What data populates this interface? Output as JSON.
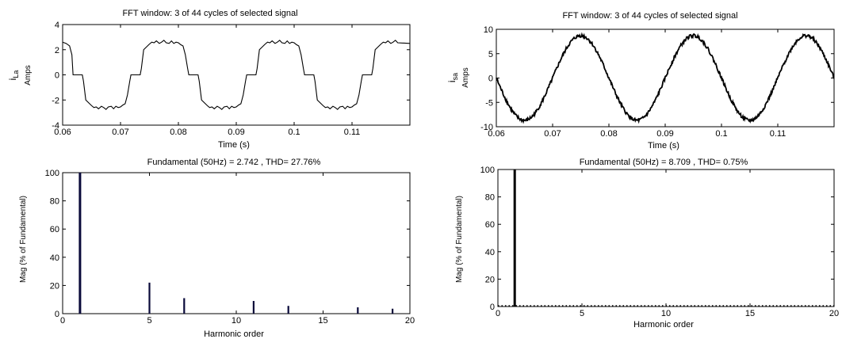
{
  "chart_data": [
    {
      "type": "line",
      "title": "FFT window: 3 of 44 cycles of selected signal",
      "xlabel": "Time (s)",
      "ylabel": "Amps",
      "ylabel_symbol": "i",
      "ylabel_subscript": "La",
      "xlim": [
        0.06,
        0.12
      ],
      "ylim": [
        -4,
        4
      ],
      "xticks": [
        0.06,
        0.07,
        0.08,
        0.09,
        0.1,
        0.11
      ],
      "xtick_labels": [
        "0.06",
        "0.07",
        "0.08",
        "0.09",
        "0.1",
        "0.11"
      ],
      "yticks": [
        -4,
        -2,
        0,
        2,
        4
      ],
      "ytick_labels": [
        "-4",
        "-2",
        "0",
        "2",
        "4"
      ],
      "series": [
        {
          "x": [
            0.06,
            0.0606,
            0.0612,
            0.0616,
            0.0618,
            0.0622,
            0.0634,
            0.0636,
            0.064,
            0.065,
            0.0654,
            0.0658,
            0.0662,
            0.0667,
            0.0671,
            0.0675,
            0.0679,
            0.0684,
            0.0688,
            0.0692,
            0.0696,
            0.07,
            0.0704,
            0.0708,
            0.0712,
            0.0716,
            0.0718,
            0.0722,
            0.0734,
            0.0736,
            0.074,
            0.075,
            0.0754,
            0.0758,
            0.0762,
            0.0767,
            0.0771,
            0.0775,
            0.0779,
            0.0784,
            0.0788,
            0.0792,
            0.0796,
            0.08,
            0.0804,
            0.0808,
            0.0812,
            0.0816,
            0.0818,
            0.0822,
            0.0834,
            0.0836,
            0.084,
            0.085,
            0.0854,
            0.0858,
            0.0862,
            0.0867,
            0.0871,
            0.0875,
            0.0879,
            0.0884,
            0.0888,
            0.0892,
            0.0896,
            0.09,
            0.0904,
            0.0908,
            0.0912,
            0.0916,
            0.0918,
            0.0922,
            0.0934,
            0.0936,
            0.094,
            0.095,
            0.0954,
            0.0958,
            0.0962,
            0.0967,
            0.0971,
            0.0975,
            0.0979,
            0.0984,
            0.0988,
            0.0992,
            0.0996,
            0.1,
            0.1004,
            0.1008,
            0.1012,
            0.1016,
            0.1018,
            0.1022,
            0.1034,
            0.1036,
            0.104,
            0.105,
            0.1054,
            0.1058,
            0.1062,
            0.1067,
            0.1071,
            0.1075,
            0.1079,
            0.1084,
            0.1088,
            0.1092,
            0.1096,
            0.11,
            0.1104,
            0.1108,
            0.1112,
            0.1116,
            0.1118,
            0.1122,
            0.1134,
            0.1136,
            0.114,
            0.115,
            0.1154,
            0.1158,
            0.1162,
            0.1167,
            0.1171,
            0.1175,
            0.1179,
            0.12
          ],
          "y": [
            2.6,
            2.5,
            2.3,
            1.6,
            0,
            0,
            0,
            -0.5,
            -2.0,
            -2.45,
            -2.6,
            -2.55,
            -2.7,
            -2.5,
            -2.6,
            -2.75,
            -2.55,
            -2.5,
            -2.7,
            -2.5,
            -2.6,
            -2.55,
            -2.4,
            -2.3,
            -1.6,
            -0.5,
            0,
            0,
            0,
            0.5,
            2.0,
            2.45,
            2.6,
            2.55,
            2.7,
            2.5,
            2.6,
            2.75,
            2.55,
            2.5,
            2.7,
            2.5,
            2.6,
            2.55,
            2.4,
            2.3,
            1.6,
            0.5,
            0,
            0,
            0,
            -0.5,
            -2.0,
            -2.45,
            -2.6,
            -2.55,
            -2.7,
            -2.5,
            -2.6,
            -2.75,
            -2.55,
            -2.5,
            -2.7,
            -2.5,
            -2.6,
            -2.55,
            -2.4,
            -2.3,
            -1.6,
            -0.5,
            0,
            0,
            0,
            0.5,
            2.0,
            2.45,
            2.6,
            2.55,
            2.7,
            2.5,
            2.6,
            2.75,
            2.55,
            2.5,
            2.7,
            2.5,
            2.6,
            2.55,
            2.4,
            2.3,
            1.6,
            0.5,
            0,
            0,
            0,
            -0.5,
            -2.0,
            -2.45,
            -2.6,
            -2.55,
            -2.7,
            -2.5,
            -2.6,
            -2.75,
            -2.55,
            -2.5,
            -2.7,
            -2.5,
            -2.6,
            -2.55,
            -2.4,
            -2.3,
            -1.6,
            -0.5,
            0,
            0,
            0,
            0.5,
            2.0,
            2.45,
            2.6,
            2.55,
            2.7,
            2.5,
            2.6,
            2.75,
            2.55,
            2.5
          ]
        }
      ]
    },
    {
      "type": "line",
      "title": "FFT window: 3 of 44 cycles of selected signal",
      "xlabel": "Time (s)",
      "ylabel": "Amps",
      "ylabel_symbol": "i",
      "ylabel_subscript": "sa",
      "xlim": [
        0.06,
        0.12
      ],
      "ylim": [
        -10,
        10
      ],
      "xticks": [
        0.06,
        0.07,
        0.08,
        0.09,
        0.1,
        0.11
      ],
      "xtick_labels": [
        "0.06",
        "0.07",
        "0.08",
        "0.09",
        "0.1",
        "0.11"
      ],
      "yticks": [
        -10,
        -5,
        0,
        5,
        10
      ],
      "ytick_labels": [
        "-10",
        "-5",
        "0",
        "5",
        "10"
      ],
      "series": [
        {
          "function": "sine",
          "amplitude": 8.7,
          "frequency_hz": 50,
          "phase_deg": 180,
          "x_start": 0.06,
          "x_end": 0.12,
          "samples": 601,
          "noise": 0.35
        }
      ]
    },
    {
      "type": "bar",
      "title": "Fundamental (50Hz) = 2.742 , THD= 27.76%",
      "xlabel": "Harmonic order",
      "ylabel": "Mag (% of Fundamental)",
      "xlim": [
        0,
        20
      ],
      "ylim": [
        0,
        100
      ],
      "xticks": [
        0,
        5,
        10,
        15,
        20
      ],
      "xtick_labels": [
        "0",
        "5",
        "10",
        "15",
        "20"
      ],
      "yticks": [
        0,
        20,
        40,
        60,
        80,
        100
      ],
      "ytick_labels": [
        "0",
        "20",
        "40",
        "60",
        "80",
        "100"
      ],
      "categories": [
        1,
        5,
        7,
        11,
        13,
        17,
        19
      ],
      "values": [
        100,
        22,
        11,
        9,
        5.5,
        4.5,
        3.5
      ],
      "bar_color": "#0a0a3a"
    },
    {
      "type": "bar",
      "title": "Fundamental (50Hz) = 8.709 , THD= 0.75%",
      "xlabel": "Harmonic order",
      "ylabel": "Mag (% of Fundamental)",
      "xlim": [
        0,
        20
      ],
      "ylim": [
        0,
        100
      ],
      "xticks": [
        0,
        5,
        10,
        15,
        20
      ],
      "xtick_labels": [
        "0",
        "5",
        "10",
        "15",
        "20"
      ],
      "yticks": [
        0,
        20,
        40,
        60,
        80,
        100
      ],
      "ytick_labels": [
        "0",
        "20",
        "40",
        "60",
        "80",
        "100"
      ],
      "categories": [
        1
      ],
      "values": [
        100
      ],
      "bar_color": "#000000",
      "baseline_style": "dotted"
    }
  ]
}
